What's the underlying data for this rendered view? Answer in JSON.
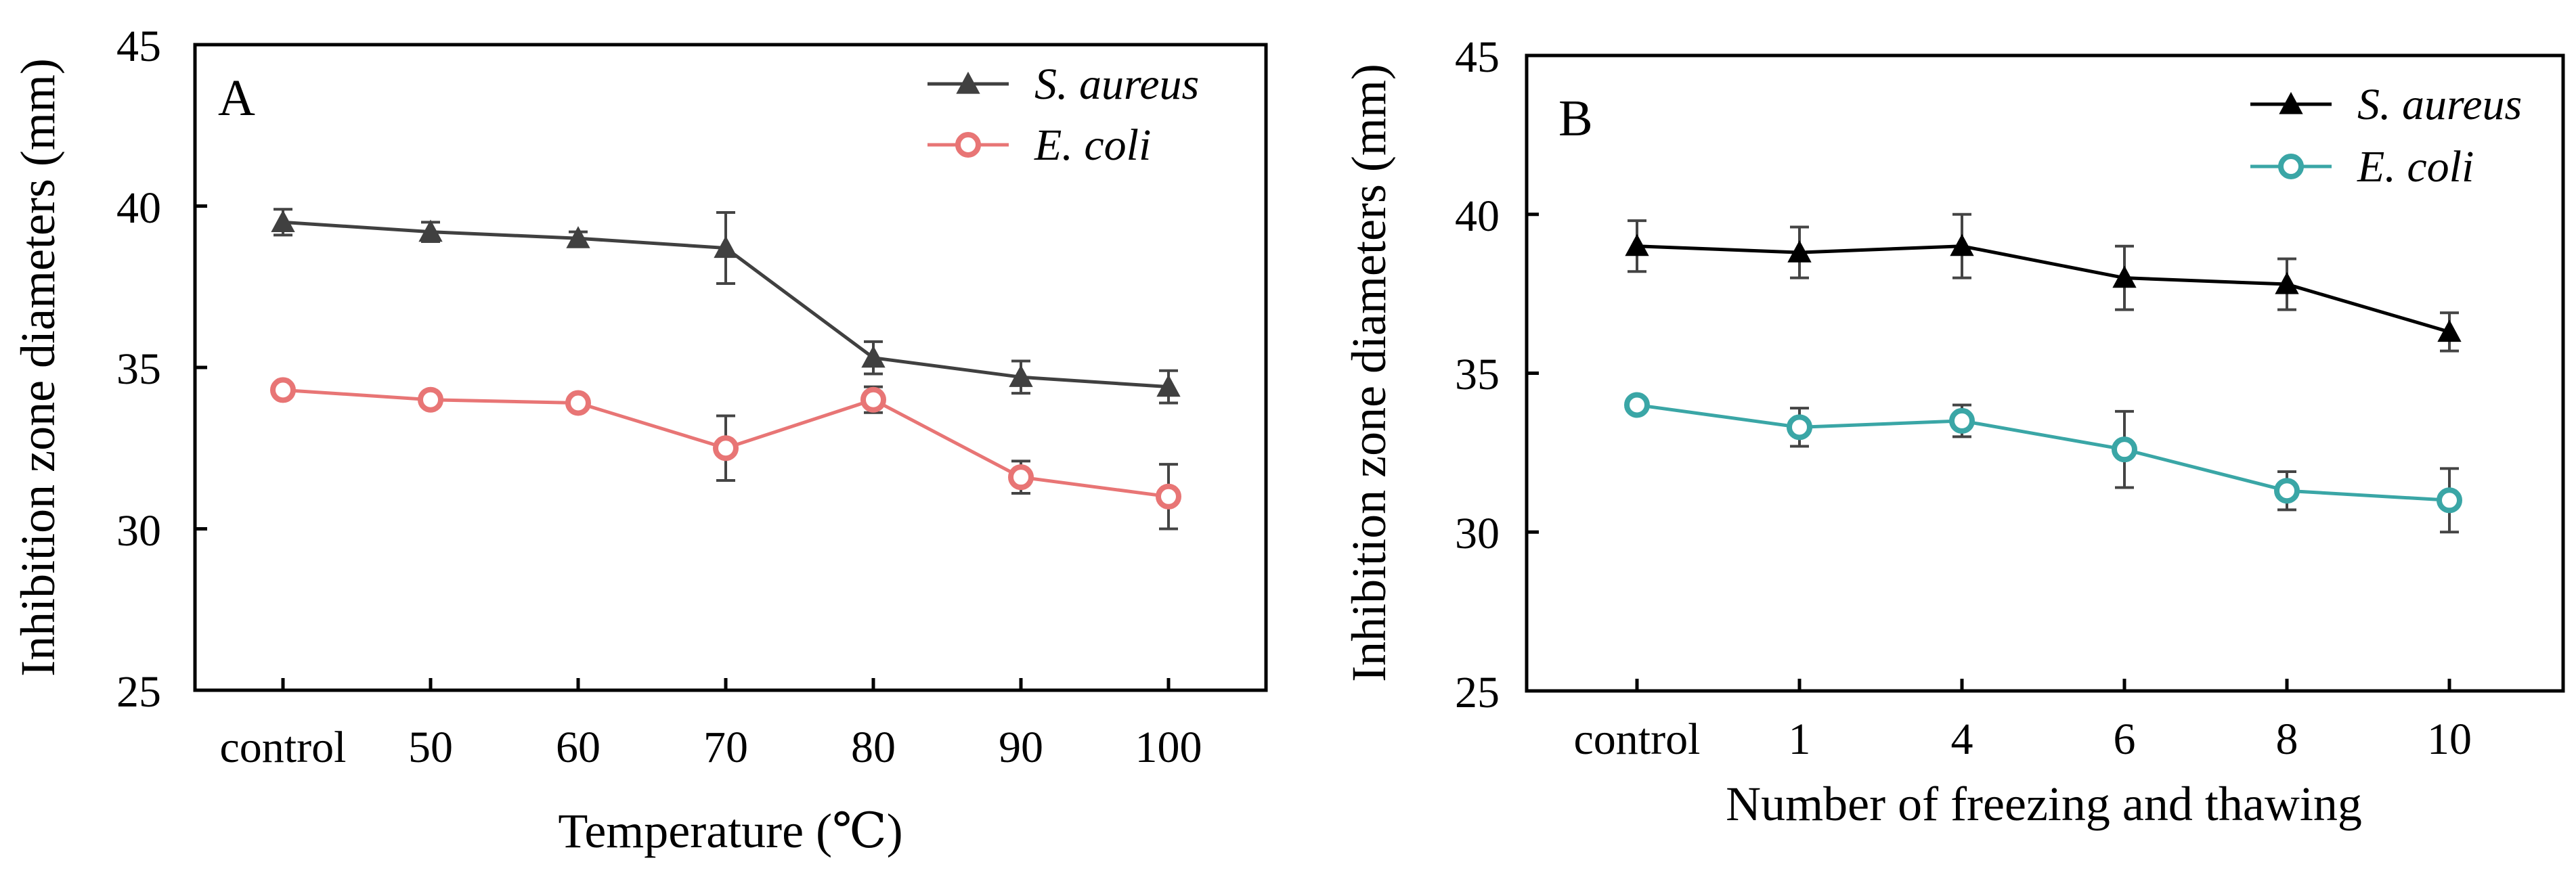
{
  "chart_data": [
    {
      "type": "line",
      "panel_label": "A",
      "xlabel": "Temperature (℃)",
      "ylabel": "Inhibition zone diameters (mm)",
      "categories": [
        "control",
        "50",
        "60",
        "70",
        "80",
        "90",
        "100"
      ],
      "ylim": [
        25,
        45
      ],
      "yticks": [
        "25",
        "30",
        "35",
        "40",
        "45"
      ],
      "grid": false,
      "legend_position": "top-right",
      "series": [
        {
          "name": "S. aureus",
          "color": "#404040",
          "marker": "triangle",
          "values": [
            39.5,
            39.2,
            39.0,
            38.7,
            35.3,
            34.7,
            34.4
          ],
          "errors": [
            0.4,
            0.3,
            0.2,
            1.1,
            0.5,
            0.5,
            0.5
          ]
        },
        {
          "name": "E. coli",
          "color": "#e87575",
          "marker": "open-circle",
          "values": [
            34.3,
            34.0,
            33.9,
            32.5,
            34.0,
            31.6,
            31.0
          ],
          "errors": [
            0.2,
            0.2,
            0.2,
            1.0,
            0.4,
            0.5,
            1.0
          ]
        }
      ]
    },
    {
      "type": "line",
      "panel_label": "B",
      "xlabel": "Number of freezing and thawing",
      "ylabel": "Inhibition zone diameters (mm)",
      "categories": [
        "control",
        "1",
        "4",
        "6",
        "8",
        "10"
      ],
      "ylim": [
        25,
        45
      ],
      "yticks": [
        "25",
        "30",
        "35",
        "40",
        "45"
      ],
      "grid": false,
      "legend_position": "top-right",
      "series": [
        {
          "name": "S. aureus",
          "color": "#000000",
          "marker": "triangle",
          "values": [
            39.0,
            38.8,
            39.0,
            38.0,
            37.8,
            36.3
          ],
          "errors": [
            0.8,
            0.8,
            1.0,
            1.0,
            0.8,
            0.6
          ]
        },
        {
          "name": "E. coli",
          "color": "#3aa6a6",
          "marker": "open-circle",
          "values": [
            34.0,
            33.3,
            33.5,
            32.6,
            31.3,
            31.0
          ],
          "errors": [
            0.2,
            0.6,
            0.5,
            1.2,
            0.6,
            1.0
          ]
        }
      ]
    }
  ]
}
